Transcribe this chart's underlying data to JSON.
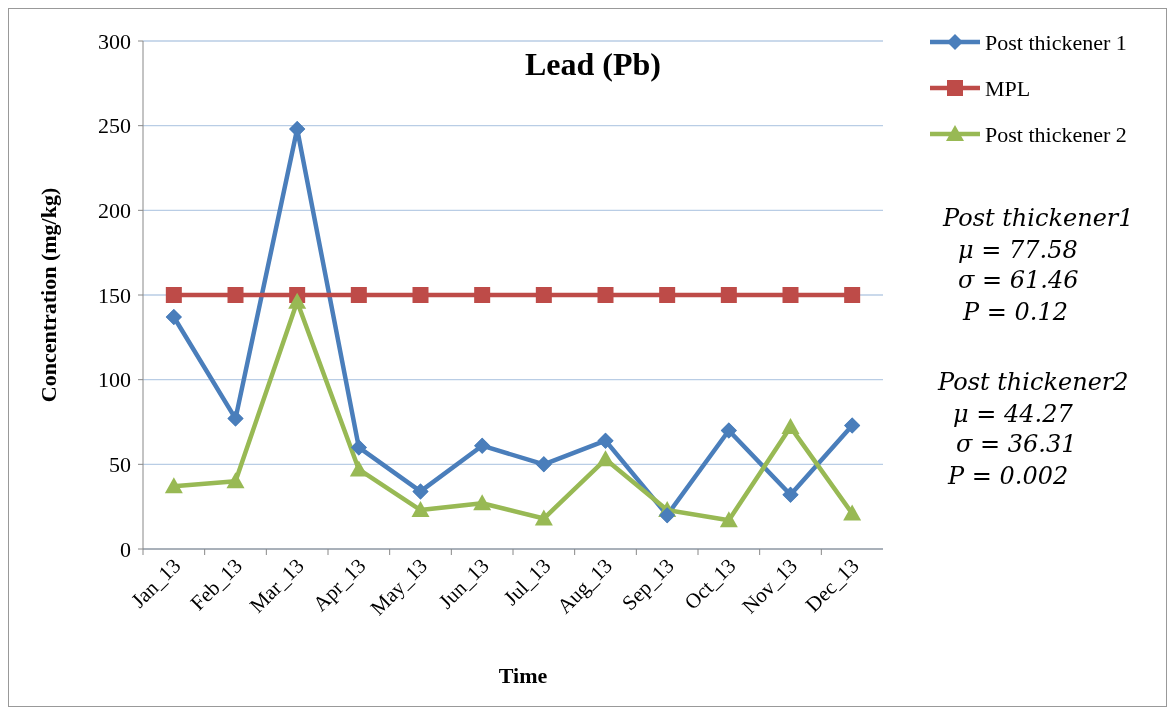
{
  "chart_data": {
    "type": "line",
    "title": "Lead (Pb)",
    "xlabel": "Time",
    "ylabel": "Concentration (mg/kg)",
    "categories": [
      "Jan_13",
      "Feb_13",
      "Mar_13",
      "Apr_13",
      "May_13",
      "Jun_13",
      "Jul_13",
      "Aug_13",
      "Sep_13",
      "Oct_13",
      "Nov_13",
      "Dec_13"
    ],
    "series": [
      {
        "name": "Post thickener 1",
        "color": "#4a7ebb",
        "marker": "diamond",
        "values": [
          137,
          77,
          248,
          60,
          34,
          61,
          50,
          64,
          20,
          70,
          32,
          73
        ]
      },
      {
        "name": "MPL",
        "color": "#be4b48",
        "marker": "square",
        "values": [
          150,
          150,
          150,
          150,
          150,
          150,
          150,
          150,
          150,
          150,
          150,
          150
        ]
      },
      {
        "name": "Post thickener 2",
        "color": "#98b954",
        "marker": "triangle",
        "values": [
          37,
          40,
          146,
          47,
          23,
          27,
          18,
          53,
          23,
          17,
          72,
          21
        ]
      }
    ],
    "ylim": [
      0,
      300
    ],
    "yticks": [
      0,
      50,
      100,
      150,
      200,
      250,
      300
    ],
    "grid": "y",
    "legend": "top right",
    "annotations": [
      "Post thickener1",
      "μ = 77.58",
      "σ = 61.46",
      "P = 0.12",
      "Post thickener2",
      "μ = 44.27",
      "σ = 36.31",
      "P = 0.002"
    ]
  }
}
